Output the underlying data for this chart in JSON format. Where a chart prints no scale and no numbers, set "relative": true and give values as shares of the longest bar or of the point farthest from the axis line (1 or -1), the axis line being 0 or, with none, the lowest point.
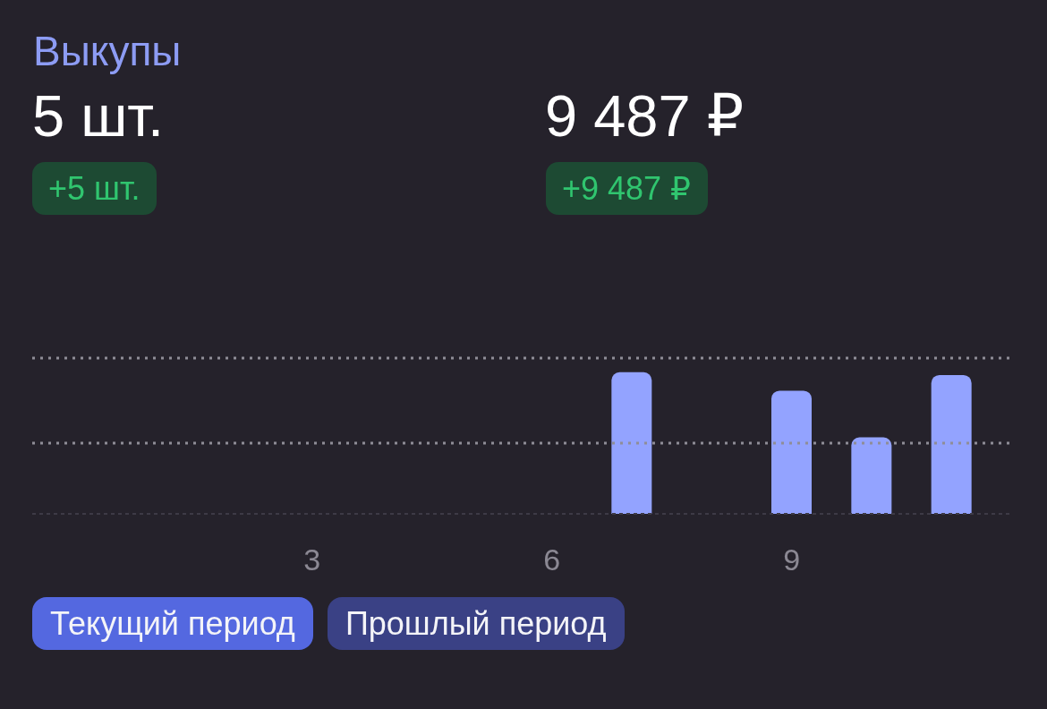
{
  "chart_data": {
    "type": "bar",
    "title": "Выкупы",
    "annotations": [
      "5 шт.",
      "9 487 ₽",
      "+5 шт.",
      "+9 487 ₽"
    ],
    "categories": [
      null,
      null,
      null,
      "3",
      null,
      null,
      "6",
      null,
      null,
      "9",
      null,
      null
    ],
    "series": [
      {
        "name": "Текущий период",
        "color": "#93a3ff",
        "values": [
          null,
          null,
          null,
          null,
          null,
          null,
          null,
          1,
          null,
          0.87,
          0.54,
          0.98
        ]
      },
      {
        "name": "Прошлый период",
        "values": [
          null,
          null,
          null,
          null,
          null,
          null,
          null,
          null,
          null,
          null,
          null,
          null
        ]
      }
    ],
    "relative": true,
    "legend": "bottom",
    "ref_lines": [
      {
        "axis": "y",
        "value": 1.1,
        "color": "#8f8d97",
        "line_style": "dotted"
      },
      {
        "axis": "y",
        "value": 0.5,
        "color": "#8f8d97",
        "line_style": "dotted"
      }
    ]
  }
}
